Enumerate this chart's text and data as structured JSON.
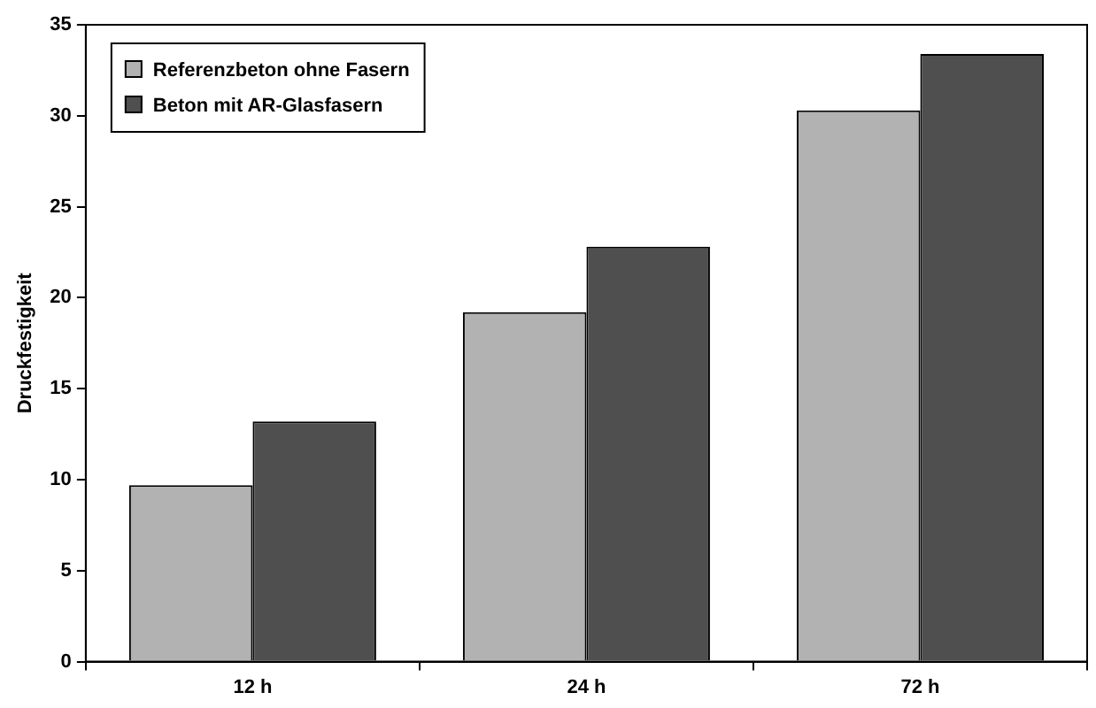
{
  "chart_data": {
    "type": "bar",
    "ylabel": "Druckfestigkeit",
    "categories": [
      "12 h",
      "24 h",
      "72 h"
    ],
    "series": [
      {
        "name": "Referenzbeton ohne Fasern",
        "color": "#b2b2b2",
        "values": [
          9.7,
          19.2,
          30.3
        ]
      },
      {
        "name": "Beton mit AR-Glasfasern",
        "color": "#4f4f4f",
        "values": [
          13.2,
          22.8,
          33.4
        ]
      }
    ],
    "ylim": [
      0,
      35
    ],
    "yticks": [
      0,
      5,
      10,
      15,
      20,
      25,
      30,
      35
    ],
    "grid": false,
    "legend": "top left"
  }
}
